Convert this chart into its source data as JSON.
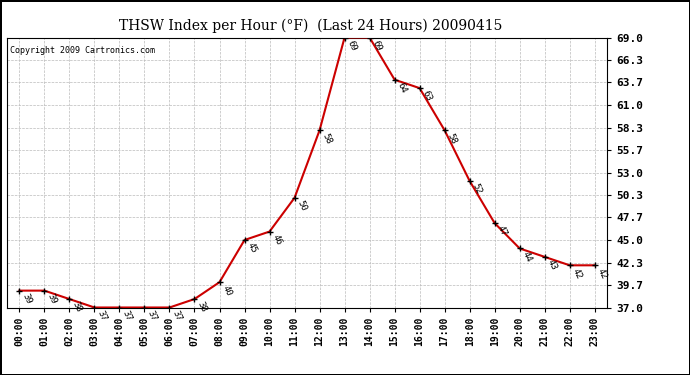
{
  "title": "THSW Index per Hour (°F)  (Last 24 Hours) 20090415",
  "copyright": "Copyright 2009 Cartronics.com",
  "hours": [
    "00:00",
    "01:00",
    "02:00",
    "03:00",
    "04:00",
    "05:00",
    "06:00",
    "07:00",
    "08:00",
    "09:00",
    "10:00",
    "11:00",
    "12:00",
    "13:00",
    "14:00",
    "15:00",
    "16:00",
    "17:00",
    "18:00",
    "19:00",
    "20:00",
    "21:00",
    "22:00",
    "23:00"
  ],
  "values": [
    39,
    39,
    38,
    37,
    37,
    37,
    37,
    38,
    40,
    45,
    46,
    50,
    58,
    69,
    69,
    64,
    63,
    58,
    52,
    47,
    44,
    43,
    42,
    42
  ],
  "ylim": [
    37.0,
    69.0
  ],
  "yticks": [
    37.0,
    39.7,
    42.3,
    45.0,
    47.7,
    50.3,
    53.0,
    55.7,
    58.3,
    61.0,
    63.7,
    66.3,
    69.0
  ],
  "line_color": "#cc0000",
  "marker_color": "#000000",
  "bg_color": "#ffffff",
  "grid_color": "#bbbbbb",
  "label_color": "#000000",
  "fig_bg": "#ffffff",
  "outer_border_color": "#000000"
}
